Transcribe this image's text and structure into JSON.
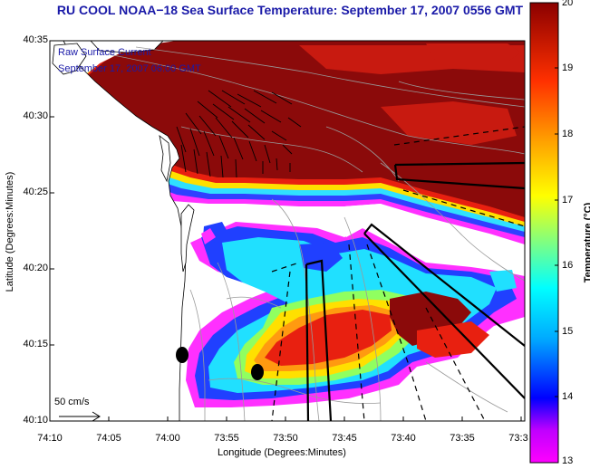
{
  "title": "RU COOL  NOAA−18  Sea Surface Temperature:  September 17, 2007 0556 GMT",
  "current_label_1": "Raw Surface Current",
  "current_label_2": "September 17, 2007 06:00 GMT",
  "scale_label": "50 cm/s",
  "xlabel": "Longitude (Degrees:Minutes)",
  "ylabel": "Latitude (Degrees:Minutes)",
  "colorbar_label": "Temperature (°C)",
  "y_ticks": [
    "40:35",
    "40:30",
    "40:25",
    "40:20",
    "40:15",
    "40:10"
  ],
  "x_ticks": [
    "74:10",
    "74:05",
    "74:00",
    "73:55",
    "73:50",
    "73:45",
    "73:40",
    "73:35",
    "73:3"
  ],
  "colorbar_ticks": [
    "20",
    "19",
    "18",
    "17",
    "16",
    "15",
    "14",
    "13"
  ],
  "colors": {
    "title": "#1a1aa8",
    "land": "#ffffff",
    "warm": "#8b0a0a",
    "colormap": [
      "#ff00ff",
      "#a000ff",
      "#0000ff",
      "#00aaff",
      "#00ffff",
      "#80ff80",
      "#ffff00",
      "#ffa000",
      "#ff3000",
      "#8b0000"
    ]
  },
  "chart_data": {
    "type": "heatmap",
    "variable": "sea surface temperature",
    "unit": "°C",
    "color_range": [
      13,
      20
    ],
    "lon_range": [
      "74:10",
      "73:3"
    ],
    "lat_range": [
      "40:10",
      "40:35"
    ]
  }
}
